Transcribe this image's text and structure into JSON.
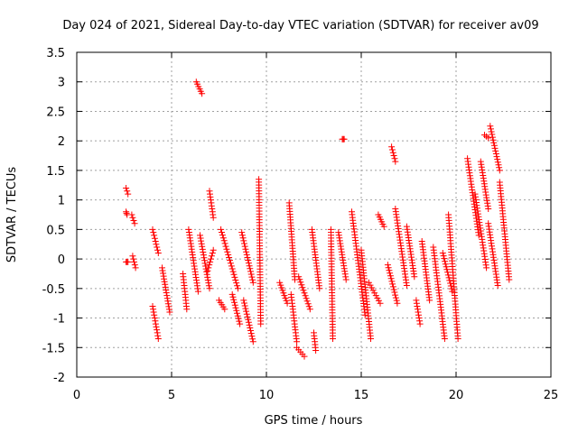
{
  "chart_data": {
    "type": "scatter",
    "title": "Day 024 of 2021, Sidereal Day-to-day VTEC variation (SDTVAR) for receiver av09",
    "xlabel": "GPS time / hours",
    "ylabel": "SDTVAR / TECUs",
    "xlim": [
      0,
      25
    ],
    "ylim": [
      -2,
      3.5
    ],
    "xticks": [
      0,
      5,
      10,
      15,
      20,
      25
    ],
    "yticks": [
      -2,
      -1.5,
      -1,
      -0.5,
      0,
      0.5,
      1,
      1.5,
      2,
      2.5,
      3,
      3.5
    ],
    "xtick_labels": [
      "0",
      "5",
      "10",
      "15",
      "20",
      "25"
    ],
    "ytick_labels": [
      "-2",
      "-1.5",
      "-1",
      "-0.5",
      "0",
      "0.5",
      "1",
      "1.5",
      "2",
      "2.5",
      "3",
      "3.5"
    ],
    "grid": true,
    "marker": "+",
    "color": "#ff0000",
    "segments": [
      {
        "x": [
          2.6,
          2.7
        ],
        "y": [
          1.2,
          1.1
        ]
      },
      {
        "x": [
          2.6,
          2.65
        ],
        "y": [
          0.8,
          0.75
        ]
      },
      {
        "x": [
          2.9,
          3.05
        ],
        "y": [
          0.75,
          0.6
        ]
      },
      {
        "x": [
          2.6,
          2.7
        ],
        "y": [
          -0.05,
          -0.05
        ]
      },
      {
        "x": [
          2.95,
          3.1
        ],
        "y": [
          0.05,
          -0.15
        ]
      },
      {
        "x": [
          4.0,
          4.3
        ],
        "y": [
          0.5,
          0.1
        ]
      },
      {
        "x": [
          4.0,
          4.3
        ],
        "y": [
          -0.8,
          -1.35
        ]
      },
      {
        "x": [
          4.5,
          4.9
        ],
        "y": [
          -0.15,
          -0.9
        ]
      },
      {
        "x": [
          5.6,
          5.8
        ],
        "y": [
          -0.25,
          -0.85
        ]
      },
      {
        "x": [
          5.9,
          6.4
        ],
        "y": [
          0.5,
          -0.55
        ]
      },
      {
        "x": [
          6.3,
          6.6
        ],
        "y": [
          3.0,
          2.8
        ]
      },
      {
        "x": [
          6.5,
          7.0
        ],
        "y": [
          0.4,
          -0.5
        ]
      },
      {
        "x": [
          6.9,
          7.2
        ],
        "y": [
          -0.2,
          0.15
        ]
      },
      {
        "x": [
          7.0,
          7.2
        ],
        "y": [
          1.15,
          0.7
        ]
      },
      {
        "x": [
          7.5,
          7.8
        ],
        "y": [
          -0.7,
          -0.85
        ]
      },
      {
        "x": [
          7.6,
          8.5
        ],
        "y": [
          0.5,
          -0.5
        ]
      },
      {
        "x": [
          8.2,
          8.6
        ],
        "y": [
          -0.6,
          -1.1
        ]
      },
      {
        "x": [
          8.7,
          9.3
        ],
        "y": [
          0.45,
          -0.4
        ]
      },
      {
        "x": [
          8.8,
          9.3
        ],
        "y": [
          -0.7,
          -1.4
        ]
      },
      {
        "x": [
          9.6,
          9.7
        ],
        "y": [
          1.35,
          -1.1
        ]
      },
      {
        "x": [
          10.7,
          11.1
        ],
        "y": [
          -0.4,
          -0.75
        ]
      },
      {
        "x": [
          11.2,
          11.5
        ],
        "y": [
          0.95,
          -0.35
        ]
      },
      {
        "x": [
          11.3,
          11.6
        ],
        "y": [
          -0.6,
          -1.4
        ]
      },
      {
        "x": [
          11.6,
          12.0
        ],
        "y": [
          -1.5,
          -1.65
        ]
      },
      {
        "x": [
          11.7,
          12.3
        ],
        "y": [
          -0.3,
          -0.85
        ]
      },
      {
        "x": [
          12.4,
          12.8
        ],
        "y": [
          0.5,
          -0.5
        ]
      },
      {
        "x": [
          12.5,
          12.6
        ],
        "y": [
          -1.25,
          -1.55
        ]
      },
      {
        "x": [
          13.4,
          13.5
        ],
        "y": [
          0.5,
          -1.35
        ]
      },
      {
        "x": [
          13.8,
          14.2
        ],
        "y": [
          0.45,
          -0.35
        ]
      },
      {
        "x": [
          14.0,
          14.1
        ],
        "y": [
          2.03,
          2.03
        ]
      },
      {
        "x": [
          14.5,
          15.2
        ],
        "y": [
          0.8,
          -0.95
        ]
      },
      {
        "x": [
          15.0,
          15.5
        ],
        "y": [
          0.15,
          -1.35
        ]
      },
      {
        "x": [
          15.4,
          16.0
        ],
        "y": [
          -0.4,
          -0.75
        ]
      },
      {
        "x": [
          15.9,
          16.2
        ],
        "y": [
          0.75,
          0.55
        ]
      },
      {
        "x": [
          16.4,
          16.9
        ],
        "y": [
          -0.1,
          -0.75
        ]
      },
      {
        "x": [
          16.6,
          16.8
        ],
        "y": [
          1.9,
          1.65
        ]
      },
      {
        "x": [
          16.8,
          17.4
        ],
        "y": [
          0.85,
          -0.45
        ]
      },
      {
        "x": [
          17.4,
          17.8
        ],
        "y": [
          0.55,
          -0.3
        ]
      },
      {
        "x": [
          17.9,
          18.1
        ],
        "y": [
          -0.7,
          -1.1
        ]
      },
      {
        "x": [
          18.2,
          18.6
        ],
        "y": [
          0.3,
          -0.7
        ]
      },
      {
        "x": [
          18.8,
          19.4
        ],
        "y": [
          0.2,
          -1.35
        ]
      },
      {
        "x": [
          19.3,
          19.8
        ],
        "y": [
          0.1,
          -0.55
        ]
      },
      {
        "x": [
          19.6,
          20.1
        ],
        "y": [
          0.75,
          -1.35
        ]
      },
      {
        "x": [
          20.6,
          21.2
        ],
        "y": [
          1.7,
          0.4
        ]
      },
      {
        "x": [
          21.0,
          21.6
        ],
        "y": [
          1.1,
          -0.15
        ]
      },
      {
        "x": [
          21.3,
          21.7
        ],
        "y": [
          1.65,
          0.85
        ]
      },
      {
        "x": [
          21.5,
          21.7
        ],
        "y": [
          2.1,
          2.05
        ]
      },
      {
        "x": [
          21.7,
          22.2
        ],
        "y": [
          0.6,
          -0.45
        ]
      },
      {
        "x": [
          21.8,
          22.3
        ],
        "y": [
          2.25,
          1.5
        ]
      },
      {
        "x": [
          22.3,
          22.8
        ],
        "y": [
          1.3,
          -0.35
        ]
      }
    ]
  }
}
